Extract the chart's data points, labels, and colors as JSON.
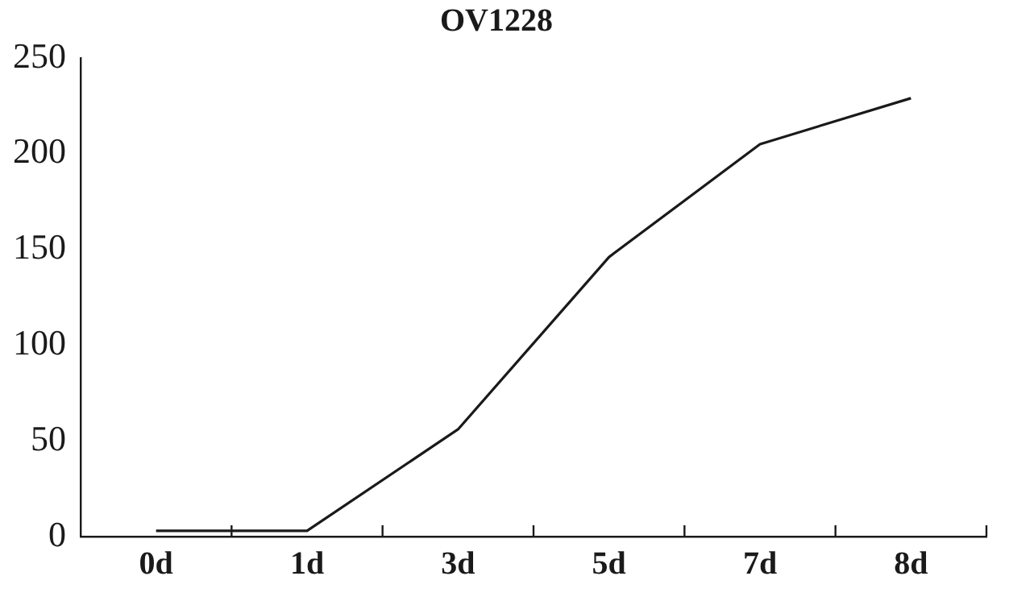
{
  "chart_data": {
    "type": "line",
    "title": "OV1228",
    "categories": [
      "0d",
      "1d",
      "3d",
      "5d",
      "7d",
      "8d"
    ],
    "series": [
      {
        "color": "#1a1a1a",
        "values": [
          3,
          3,
          56,
          146,
          205,
          229
        ]
      }
    ],
    "ylim": [
      0,
      250
    ],
    "yticks": [
      0,
      50,
      100,
      150,
      200,
      250
    ],
    "grid": false,
    "legend": false,
    "marker": "none",
    "line_style": "solid"
  }
}
